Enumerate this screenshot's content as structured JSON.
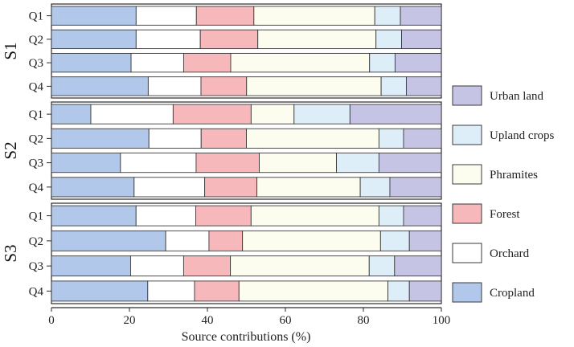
{
  "chart_data": {
    "type": "stacked-horizontal-bar",
    "xlabel": "Source contributions (%)",
    "xlim": [
      0,
      100
    ],
    "xticks": [
      0,
      20,
      40,
      60,
      80,
      100
    ],
    "legend_position": "right",
    "colors": {
      "Cropland": "#b2c8ea",
      "Orchard": "#ffffff",
      "Forest": "#f6b8bb",
      "Phramites": "#fdfdef",
      "Upland crops": "#ddeef8",
      "Urban land": "#c6c4e4"
    },
    "series_order": [
      "Cropland",
      "Orchard",
      "Forest",
      "Phramites",
      "Upland crops",
      "Urban land"
    ],
    "legend_order": [
      "Urban land",
      "Upland crops",
      "Phramites",
      "Forest",
      "Orchard",
      "Cropland"
    ],
    "groups": [
      {
        "name": "S1",
        "rows": [
          {
            "label": "Q1",
            "values": [
              21.5,
              15.3,
              14.6,
              30.7,
              6.5,
              10.4
            ]
          },
          {
            "label": "Q2",
            "values": [
              21.5,
              16.3,
              14.6,
              30.0,
              6.5,
              10.1
            ]
          },
          {
            "label": "Q3",
            "values": [
              20.3,
              13.4,
              12.0,
              35.4,
              6.5,
              11.8
            ]
          },
          {
            "label": "Q4",
            "values": [
              24.6,
              13.4,
              11.6,
              34.2,
              6.4,
              8.9
            ]
          }
        ]
      },
      {
        "name": "S2",
        "rows": [
          {
            "label": "Q1",
            "values": [
              10.0,
              20.9,
              19.8,
              10.9,
              14.2,
              23.2
            ]
          },
          {
            "label": "Q2",
            "values": [
              25.0,
              13.4,
              11.6,
              34.0,
              6.3,
              9.7
            ]
          },
          {
            "label": "Q3",
            "values": [
              17.7,
              19.4,
              16.2,
              19.8,
              10.9,
              16.0
            ]
          },
          {
            "label": "Q4",
            "values": [
              21.2,
              18.1,
              13.4,
              26.5,
              7.6,
              13.2
            ]
          }
        ]
      },
      {
        "name": "S3",
        "rows": [
          {
            "label": "Q1",
            "values": [
              21.7,
              15.3,
              14.2,
              32.8,
              6.3,
              9.7
            ]
          },
          {
            "label": "Q2",
            "values": [
              29.3,
              11.1,
              8.6,
              35.4,
              7.4,
              8.2
            ]
          },
          {
            "label": "Q3",
            "values": [
              20.3,
              13.6,
              12.0,
              35.6,
              6.5,
              12.0
            ]
          },
          {
            "label": "Q4",
            "values": [
              24.7,
              12.0,
              11.4,
              38.2,
              5.5,
              8.2
            ]
          }
        ]
      }
    ]
  }
}
